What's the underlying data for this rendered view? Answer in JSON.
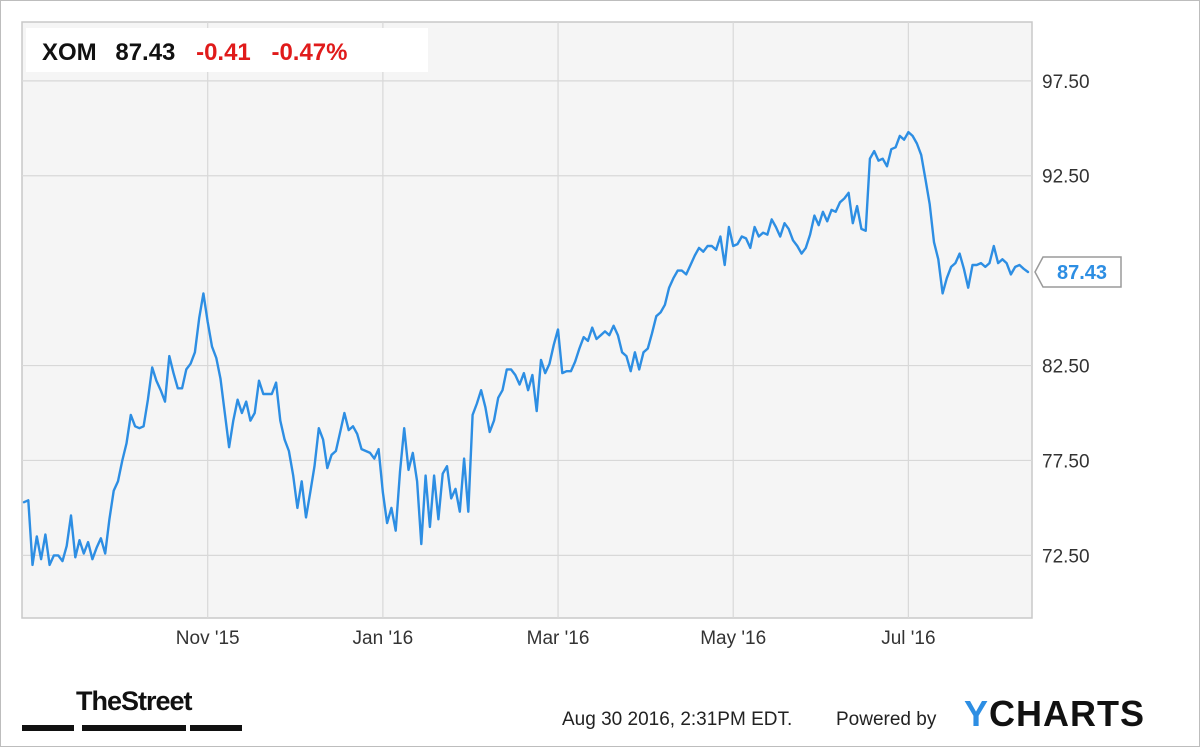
{
  "chart_data": {
    "type": "line",
    "ticker": "XOM",
    "price": "87.43",
    "change": "-0.41",
    "change_pct": "-0.47%",
    "last_value_label": "87.43",
    "x_tick_labels": [
      "Nov '15",
      "Jan '16",
      "Mar '16",
      "May '16",
      "Jul '16"
    ],
    "x_tick_indices": [
      43,
      84,
      125,
      166,
      207
    ],
    "y_ticks": [
      72.5,
      77.5,
      82.5,
      92.5,
      97.5
    ],
    "y_tick_labels": [
      "72.50",
      "77.50",
      "82.50",
      "92.50",
      "97.50"
    ],
    "ylim": [
      69.2,
      100.6
    ],
    "grid": true,
    "series": [
      {
        "color": "#2d8ee3",
        "values": [
          75.3,
          75.4,
          72.0,
          73.5,
          72.3,
          73.6,
          72.0,
          72.5,
          72.5,
          72.2,
          73.0,
          74.6,
          72.4,
          73.3,
          72.6,
          73.2,
          72.3,
          72.9,
          73.4,
          72.6,
          74.4,
          75.9,
          76.4,
          77.5,
          78.4,
          79.9,
          79.3,
          79.2,
          79.3,
          80.7,
          82.4,
          81.7,
          81.2,
          80.6,
          83.0,
          82.1,
          81.3,
          81.3,
          82.3,
          82.6,
          83.2,
          85.0,
          86.3,
          84.8,
          83.5,
          82.9,
          81.8,
          80.0,
          78.2,
          79.6,
          80.7,
          80.0,
          80.6,
          79.6,
          80.0,
          81.7,
          81.0,
          81.0,
          81.0,
          81.6,
          79.6,
          78.6,
          78.0,
          76.7,
          75.0,
          76.4,
          74.5,
          75.8,
          77.2,
          79.2,
          78.6,
          77.1,
          77.8,
          78.0,
          79.0,
          80.0,
          79.1,
          79.3,
          78.9,
          78.1,
          78.0,
          77.9,
          77.6,
          78.1,
          75.8,
          74.2,
          75.0,
          73.8,
          76.9,
          79.2,
          77.0,
          77.9,
          76.4,
          73.1,
          76.7,
          74.0,
          76.7,
          74.4,
          76.8,
          77.2,
          75.5,
          76.0,
          74.8,
          77.6,
          74.8,
          79.9,
          80.5,
          81.2,
          80.3,
          79.0,
          79.6,
          80.8,
          81.2,
          82.3,
          82.3,
          82.0,
          81.5,
          82.1,
          81.2,
          82.0,
          80.1,
          82.8,
          82.1,
          82.6,
          83.6,
          84.4,
          82.1,
          82.2,
          82.2,
          82.7,
          83.4,
          84.0,
          83.8,
          84.5,
          83.9,
          84.1,
          84.3,
          84.1,
          84.6,
          84.1,
          83.2,
          83.0,
          82.2,
          83.2,
          82.3,
          83.2,
          83.4,
          84.2,
          85.1,
          85.3,
          85.7,
          86.6,
          87.1,
          87.5,
          87.5,
          87.3,
          87.8,
          88.3,
          88.7,
          88.5,
          88.8,
          88.8,
          88.6,
          89.3,
          87.8,
          89.8,
          88.8,
          88.9,
          89.3,
          89.2,
          88.7,
          89.8,
          89.3,
          89.5,
          89.4,
          90.2,
          89.8,
          89.3,
          90.0,
          89.7,
          89.1,
          88.8,
          88.4,
          88.7,
          89.4,
          90.4,
          89.9,
          90.6,
          90.1,
          90.7,
          90.6,
          91.1,
          91.3,
          91.6,
          90.0,
          90.9,
          89.7,
          89.6,
          93.4,
          93.8,
          93.3,
          93.4,
          93.0,
          93.9,
          94.0,
          94.6,
          94.4,
          94.8,
          94.6,
          94.2,
          93.6,
          92.3,
          91.0,
          89.0,
          88.1,
          86.3,
          87.1,
          87.7,
          87.9,
          88.4,
          87.6,
          86.6,
          87.8,
          87.8,
          87.9,
          87.7,
          87.9,
          88.8,
          87.9,
          88.1,
          87.9,
          87.3,
          87.7,
          87.8,
          87.6,
          87.43
        ]
      }
    ]
  },
  "footer": {
    "timestamp": "Aug 30 2016, 2:31PM EDT.",
    "powered_by": "Powered by",
    "ycharts_logo_y": "Y",
    "ycharts_logo_rest": "CHARTS",
    "thestreet_logo": "TheStreet"
  }
}
